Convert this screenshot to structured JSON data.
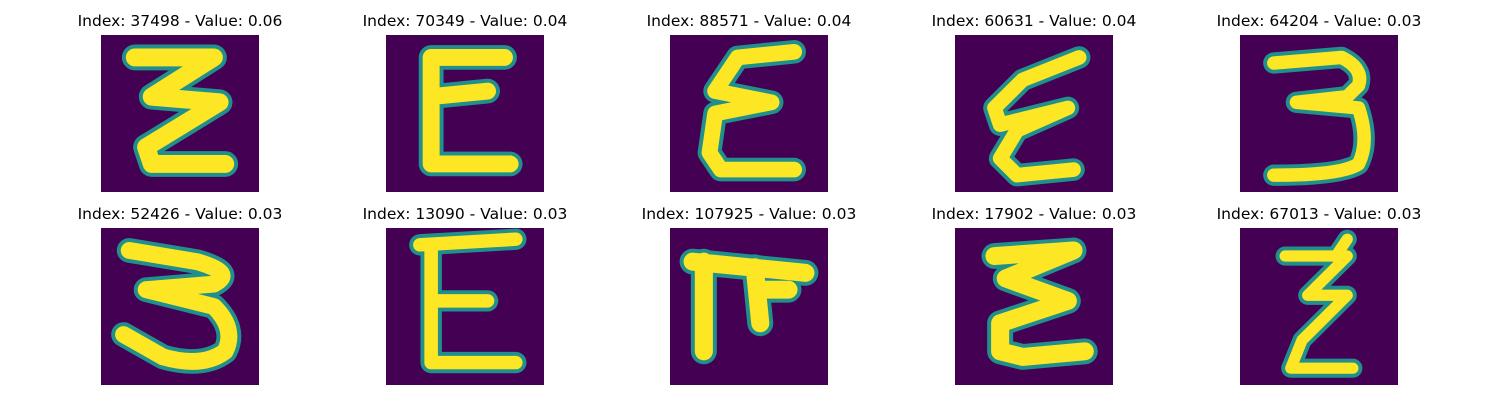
{
  "figure": {
    "panels": [
      {
        "title": "Index: 37498 - Value: 0.06",
        "glyph": "zigzag-3-strokes"
      },
      {
        "title": "Index: 70349 - Value: 0.04",
        "glyph": "epsilon-like"
      },
      {
        "title": "Index: 88571 - Value: 0.04",
        "glyph": "epsilon-like"
      },
      {
        "title": "Index: 60631 - Value: 0.04",
        "glyph": "slanted-epsilon"
      },
      {
        "title": "Index: 64204 - Value: 0.03",
        "glyph": "three"
      },
      {
        "title": "Index: 52426 - Value: 0.03",
        "glyph": "three"
      },
      {
        "title": "Index: 13090 - Value: 0.03",
        "glyph": "E-like"
      },
      {
        "title": "Index: 107925 - Value: 0.03",
        "glyph": "pi-like"
      },
      {
        "title": "Index: 17902 - Value: 0.03",
        "glyph": "E-like"
      },
      {
        "title": "Index: 67013 - Value: 0.03",
        "glyph": "z-like"
      }
    ],
    "colors": {
      "background": "#440154",
      "stroke": "#fde725",
      "edge": "#21908d"
    }
  }
}
